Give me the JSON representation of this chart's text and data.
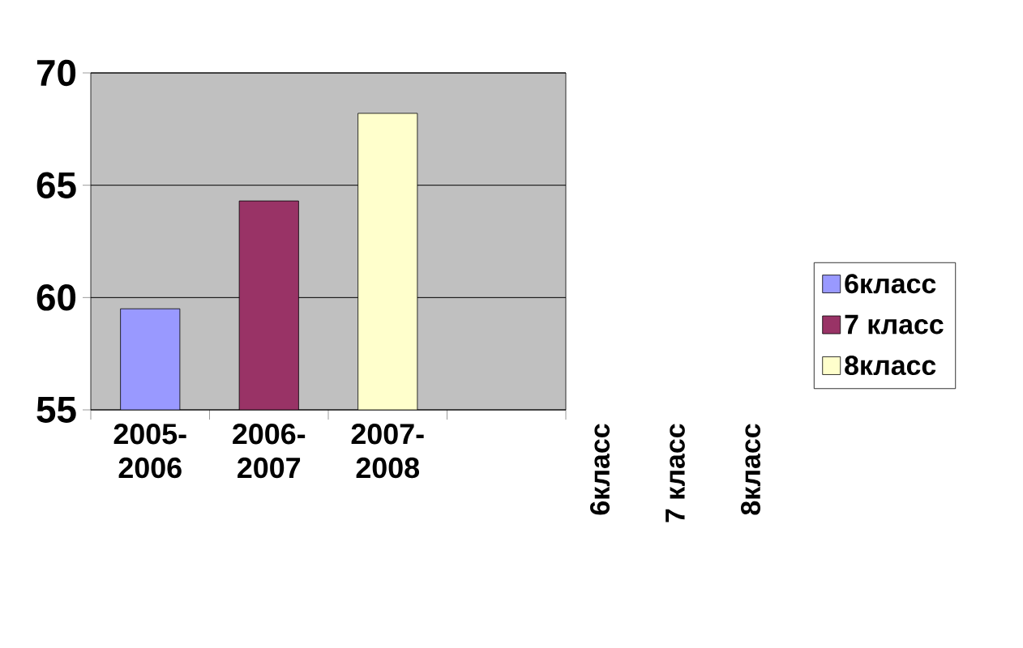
{
  "chart_data": {
    "type": "bar",
    "categories": [
      "2005-2006",
      "2006-2007",
      "2007-2008",
      null
    ],
    "series": [
      {
        "name": "6класс",
        "color": "#9999ff",
        "values": [
          59.5,
          null,
          null,
          null
        ]
      },
      {
        "name": "7 класс",
        "color": "#993366",
        "values": [
          null,
          64.3,
          null,
          null
        ]
      },
      {
        "name": "8класс",
        "color": "#ffffcc",
        "values": [
          null,
          null,
          68.2,
          null
        ]
      }
    ],
    "ylim": [
      55,
      70
    ],
    "yticks": [
      55,
      60,
      65,
      70
    ],
    "grid": "y",
    "legend": "right"
  }
}
